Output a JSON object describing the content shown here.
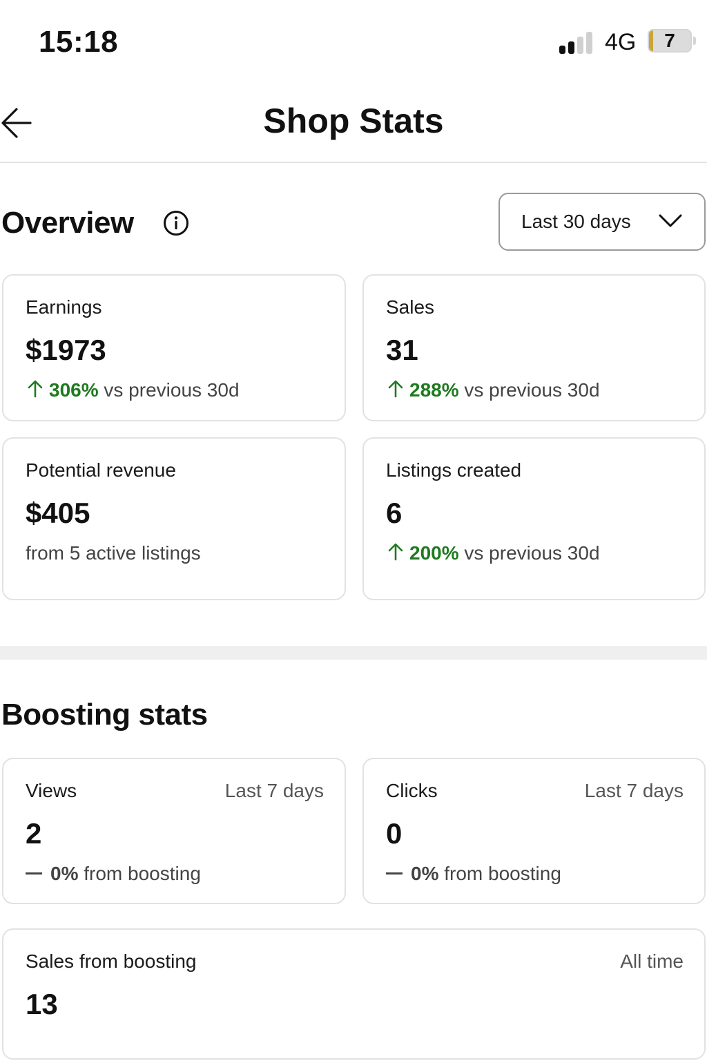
{
  "status_bar": {
    "time": "15:18",
    "network": "4G",
    "battery": "7",
    "icons": {
      "signal": "signal-bars-icon",
      "battery": "battery-icon"
    }
  },
  "header": {
    "title": "Shop Stats",
    "back_icon": "arrow-left-icon"
  },
  "overview": {
    "title": "Overview",
    "info_icon": "info-circle-icon",
    "range": {
      "label": "Last 30 days",
      "icon": "chevron-down-icon"
    },
    "cards": {
      "earnings": {
        "label": "Earnings",
        "value": "$1973",
        "pct": "306%",
        "suffix": " vs previous 30d"
      },
      "sales": {
        "label": "Sales",
        "value": "31",
        "pct": "288%",
        "suffix": " vs previous 30d"
      },
      "potential_revenue": {
        "label": "Potential revenue",
        "value": "$405",
        "sub": "from 5 active listings"
      },
      "listings_created": {
        "label": "Listings created",
        "value": "6",
        "pct": "200%",
        "suffix": " vs previous 30d"
      }
    }
  },
  "boosting": {
    "title": "Boosting stats",
    "cards": {
      "views": {
        "label": "Views",
        "period": "Last 7 days",
        "value": "2",
        "pct": "0%",
        "suffix": " from boosting"
      },
      "clicks": {
        "label": "Clicks",
        "period": "Last 7 days",
        "value": "0",
        "pct": "0%",
        "suffix": " from boosting"
      },
      "sales_from_boosting": {
        "label": "Sales from boosting",
        "period": "All time",
        "value": "13"
      }
    }
  },
  "colors": {
    "positive": "#1f7a1f",
    "text": "#1b1b1b",
    "border": "#e2e2e2",
    "band": "#efefef"
  }
}
